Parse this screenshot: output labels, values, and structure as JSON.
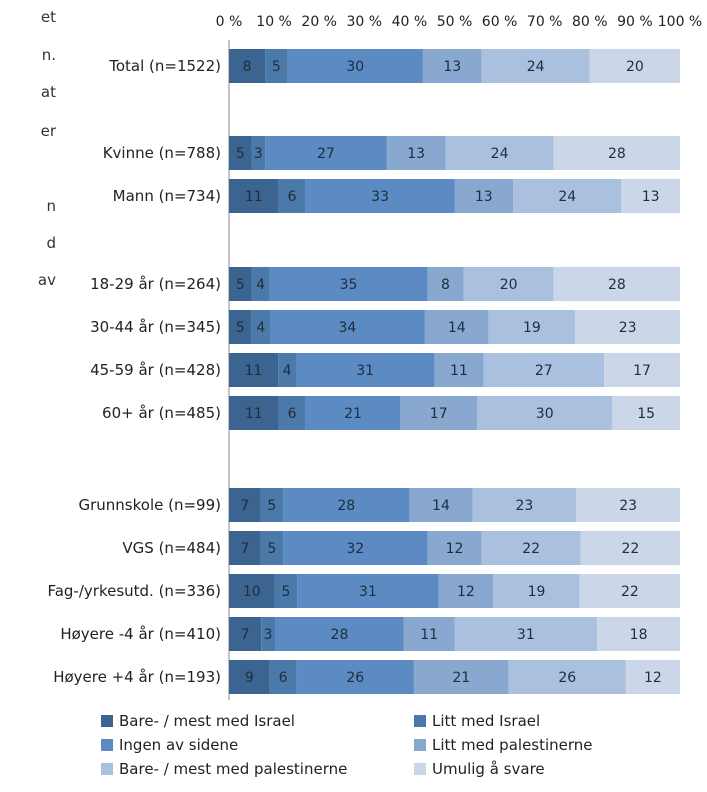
{
  "edge_text": [
    "et",
    "n.",
    "at",
    "er",
    "n",
    "d",
    "av"
  ],
  "chart_data": {
    "type": "bar",
    "orientation": "horizontal",
    "stacked": "percent",
    "title": "",
    "xlabel": "",
    "ylabel": "",
    "xlim": [
      0,
      100
    ],
    "x_ticks": [
      "0 %",
      "10 %",
      "20 %",
      "30 %",
      "40 %",
      "50 %",
      "60 %",
      "70 %",
      "80 %",
      "90 %",
      "100 %"
    ],
    "grid": false,
    "legend_position": "bottom",
    "categories": [
      "Total (n=1522)",
      "Kvinne (n=788)",
      "Mann (n=734)",
      "18-29 år (n=264)",
      "30-44 år (n=345)",
      "45-59 år (n=428)",
      "60+ år (n=485)",
      "Grunnskole (n=99)",
      "VGS (n=484)",
      "Fag-/yrkesutd. (n=336)",
      "Høyere -4 år (n=410)",
      "Høyere +4 år (n=193)"
    ],
    "series": [
      {
        "name": "Bare- / mest med Israel",
        "color": "#3c6490",
        "values": [
          8,
          5,
          11,
          5,
          5,
          11,
          11,
          7,
          7,
          10,
          7,
          9
        ]
      },
      {
        "name": "Litt med Israel",
        "color": "#4a79aa",
        "values": [
          5,
          3,
          6,
          4,
          4,
          4,
          6,
          5,
          5,
          5,
          3,
          6
        ]
      },
      {
        "name": "Ingen av sidene",
        "color": "#5b8bc2",
        "values": [
          30,
          27,
          33,
          35,
          34,
          31,
          21,
          28,
          32,
          31,
          28,
          26
        ]
      },
      {
        "name": "Litt med palestinerne",
        "color": "#88a8d0",
        "values": [
          13,
          13,
          13,
          8,
          14,
          11,
          17,
          14,
          12,
          12,
          11,
          21
        ]
      },
      {
        "name": "Bare- / mest med palestinerne",
        "color": "#a9c0de",
        "values": [
          24,
          24,
          24,
          20,
          19,
          27,
          30,
          23,
          22,
          19,
          31,
          26
        ]
      },
      {
        "name": "Umulig å svare",
        "color": "#cbd7e9",
        "values": [
          20,
          28,
          13,
          28,
          23,
          17,
          15,
          23,
          22,
          22,
          18,
          12
        ]
      }
    ]
  }
}
